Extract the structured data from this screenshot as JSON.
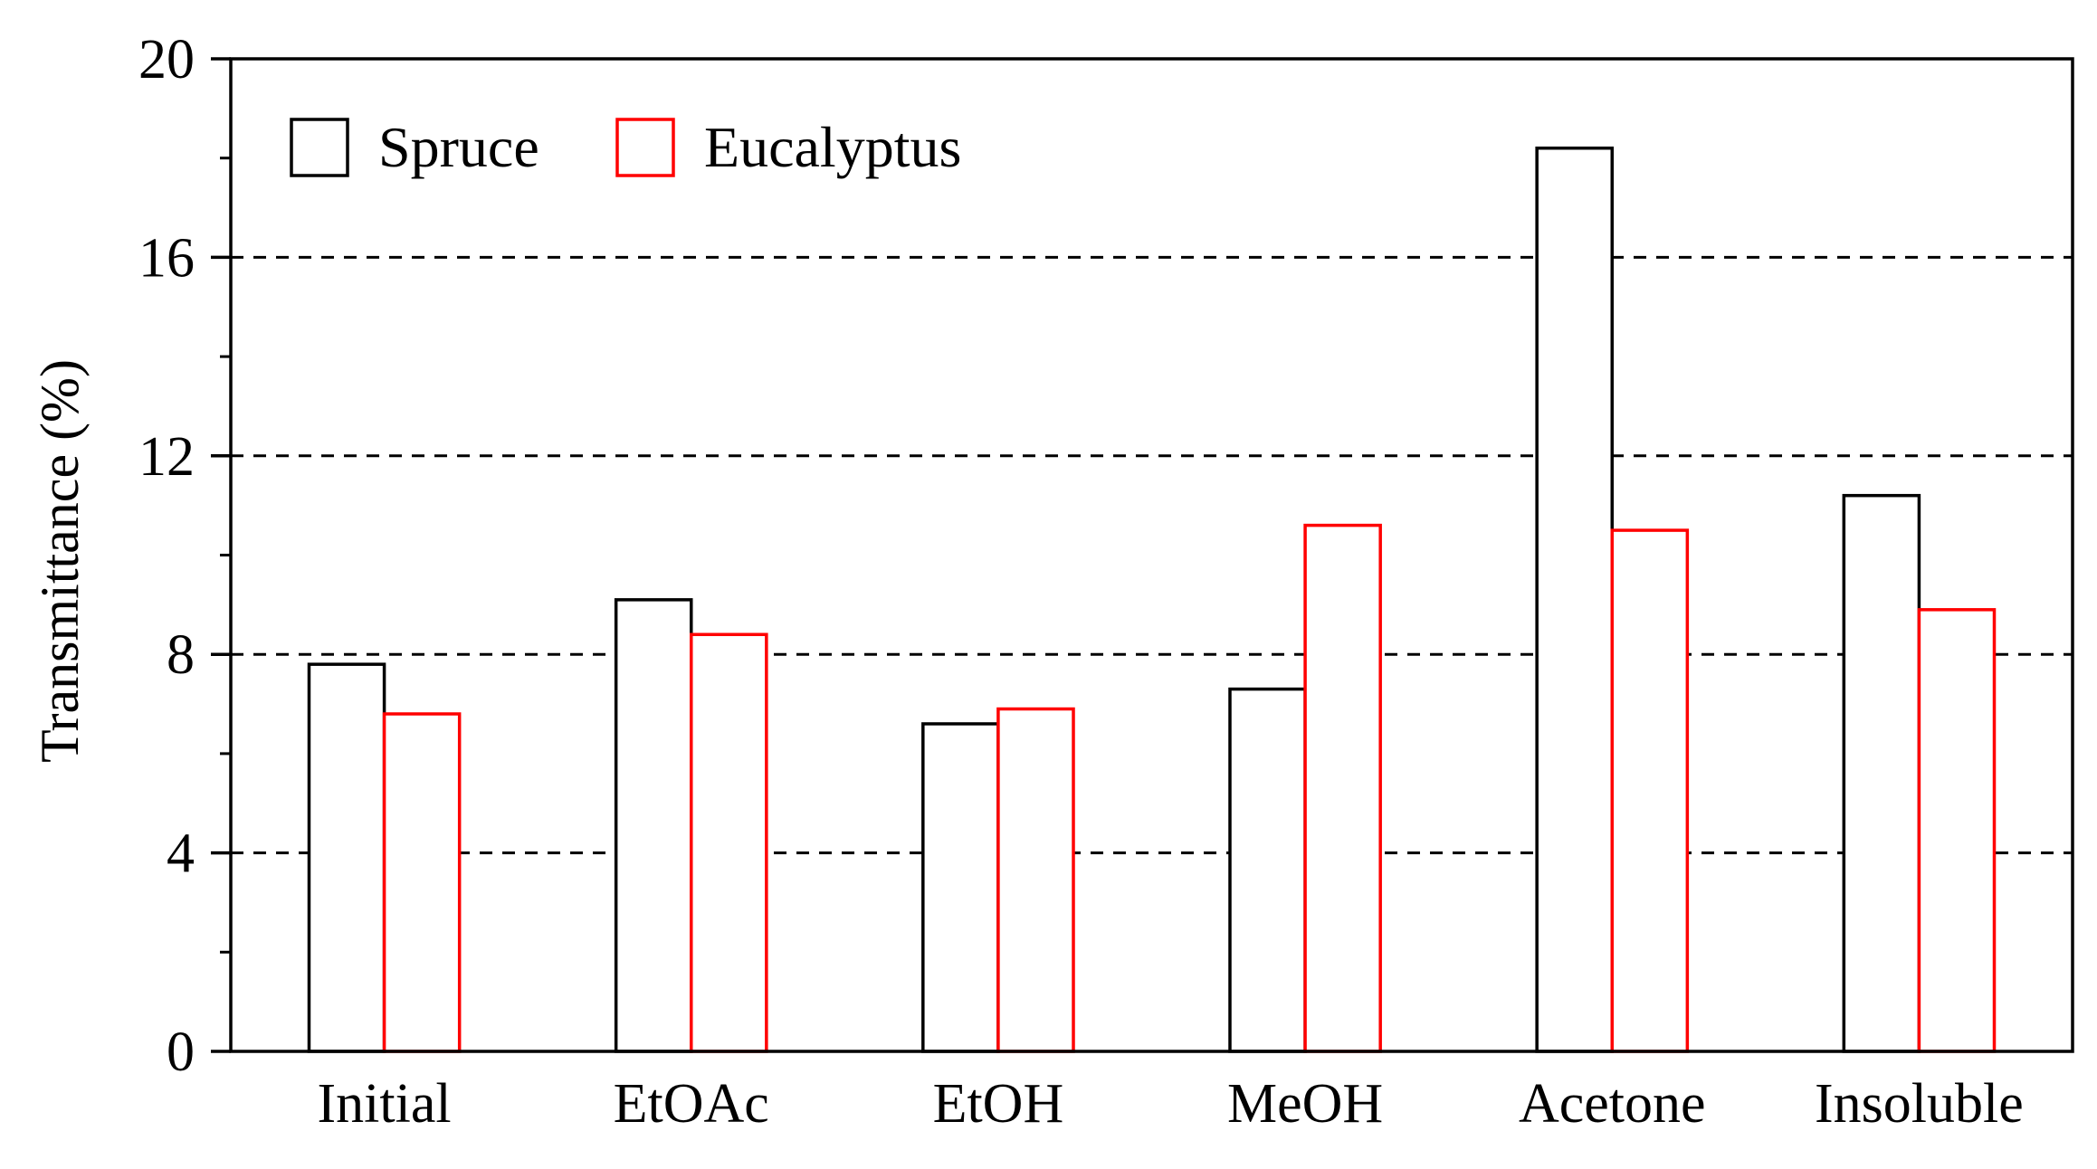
{
  "chart_data": {
    "type": "bar",
    "title": "",
    "xlabel": "",
    "ylabel": "Transmittance (%)",
    "categories": [
      "Initial",
      "EtOAc",
      "EtOH",
      "MeOH",
      "Acetone",
      "Insoluble"
    ],
    "series": [
      {
        "name": "Spruce",
        "color": "#000000",
        "values": [
          7.8,
          9.1,
          6.6,
          7.3,
          18.2,
          11.2
        ]
      },
      {
        "name": "Eucalyptus",
        "color": "#ff0000",
        "values": [
          6.8,
          8.4,
          6.9,
          10.6,
          10.5,
          8.9
        ]
      }
    ],
    "ylim": [
      0,
      20
    ],
    "yticks": [
      "0",
      "4",
      "8",
      "12",
      "16",
      "20"
    ],
    "ytick_values": [
      0,
      4,
      8,
      12,
      16,
      20
    ],
    "minor_tick_step": 2,
    "grid": "dashed horizontal at 4, 8, 12, 16",
    "legend_position": "top-left"
  }
}
